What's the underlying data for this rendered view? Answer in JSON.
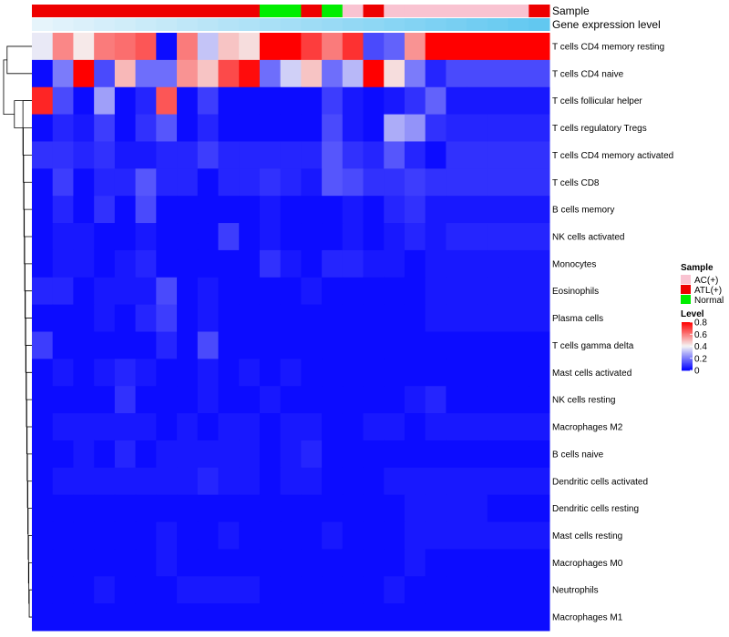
{
  "chart_data": {
    "type": "heatmap",
    "annotation_labels": {
      "sample": "Sample",
      "expression": "Gene expression level"
    },
    "samples": [
      "ATL(+)",
      "ATL(+)",
      "ATL(+)",
      "ATL(+)",
      "ATL(+)",
      "ATL(+)",
      "ATL(+)",
      "ATL(+)",
      "ATL(+)",
      "ATL(+)",
      "ATL(+)",
      "Normal",
      "Normal",
      "ATL(+)",
      "Normal",
      "AC(+)",
      "ATL(+)",
      "AC(+)",
      "AC(+)",
      "AC(+)",
      "AC(+)",
      "AC(+)",
      "AC(+)",
      "AC(+)",
      "ATL(+)"
    ],
    "expression_annotation": [
      0,
      0.04,
      0.08,
      0.12,
      0.16,
      0.2,
      0.24,
      0.28,
      0.32,
      0.36,
      0.4,
      0.44,
      0.48,
      0.52,
      0.56,
      0.6,
      0.64,
      0.68,
      0.72,
      0.76,
      0.8,
      0.84,
      0.88,
      0.92,
      0.96
    ],
    "rows": [
      "T cells CD4 memory resting",
      "T cells CD4 naive",
      "T cells follicular helper",
      "T cells regulatory  Tregs",
      "T cells CD4 memory activated",
      "T cells CD8",
      "B cells memory",
      "NK cells activated",
      "Monocytes",
      "Eosinophils",
      "Plasma cells",
      "T cells gamma delta",
      "Mast cells activated",
      "NK cells resting",
      "Macrophages M2",
      "B cells naive",
      "Dendritic cells activated",
      "Dendritic cells resting",
      "Mast cells resting",
      "Macrophages M0",
      "Neutrophils",
      "Macrophages M1"
    ],
    "values": [
      [
        0.38,
        0.58,
        0.42,
        0.6,
        0.62,
        0.66,
        0.02,
        0.6,
        0.32,
        0.48,
        0.44,
        0.8,
        0.8,
        0.7,
        0.6,
        0.72,
        0.12,
        0.16,
        0.56,
        0.8,
        0.8,
        0.8,
        0.8,
        0.8,
        0.8
      ],
      [
        0.02,
        0.2,
        0.8,
        0.12,
        0.5,
        0.18,
        0.18,
        0.56,
        0.48,
        0.68,
        0.78,
        0.18,
        0.34,
        0.48,
        0.18,
        0.3,
        0.8,
        0.44,
        0.2,
        0.06,
        0.12,
        0.12,
        0.12,
        0.12,
        0.12
      ],
      [
        0.74,
        0.12,
        0.02,
        0.26,
        0.02,
        0.06,
        0.66,
        0.02,
        0.1,
        0.02,
        0.02,
        0.02,
        0.02,
        0.02,
        0.1,
        0.04,
        0.02,
        0.04,
        0.08,
        0.16,
        0.04,
        0.04,
        0.04,
        0.04,
        0.04
      ],
      [
        0.02,
        0.06,
        0.04,
        0.1,
        0.02,
        0.08,
        0.14,
        0.02,
        0.06,
        0.02,
        0.02,
        0.02,
        0.02,
        0.02,
        0.12,
        0.04,
        0.02,
        0.28,
        0.24,
        0.08,
        0.06,
        0.06,
        0.06,
        0.06,
        0.06
      ],
      [
        0.08,
        0.08,
        0.06,
        0.08,
        0.04,
        0.04,
        0.06,
        0.06,
        0.1,
        0.06,
        0.06,
        0.06,
        0.06,
        0.06,
        0.14,
        0.08,
        0.06,
        0.14,
        0.06,
        0.02,
        0.08,
        0.08,
        0.08,
        0.08,
        0.08
      ],
      [
        0.02,
        0.1,
        0.02,
        0.06,
        0.06,
        0.14,
        0.06,
        0.06,
        0.02,
        0.06,
        0.06,
        0.08,
        0.06,
        0.04,
        0.14,
        0.12,
        0.08,
        0.08,
        0.1,
        0.08,
        0.08,
        0.08,
        0.08,
        0.08,
        0.08
      ],
      [
        0.02,
        0.06,
        0.02,
        0.08,
        0.02,
        0.12,
        0.02,
        0.02,
        0.02,
        0.02,
        0.02,
        0.04,
        0.02,
        0.02,
        0.02,
        0.04,
        0.02,
        0.06,
        0.08,
        0.04,
        0.04,
        0.04,
        0.04,
        0.04,
        0.04
      ],
      [
        0.02,
        0.04,
        0.04,
        0.02,
        0.02,
        0.04,
        0.02,
        0.02,
        0.02,
        0.1,
        0.02,
        0.04,
        0.02,
        0.02,
        0.02,
        0.04,
        0.02,
        0.04,
        0.06,
        0.04,
        0.06,
        0.06,
        0.06,
        0.06,
        0.06
      ],
      [
        0.02,
        0.04,
        0.04,
        0.02,
        0.04,
        0.06,
        0.02,
        0.02,
        0.02,
        0.02,
        0.02,
        0.08,
        0.04,
        0.02,
        0.06,
        0.06,
        0.04,
        0.04,
        0.02,
        0.04,
        0.04,
        0.04,
        0.04,
        0.04,
        0.04
      ],
      [
        0.06,
        0.06,
        0.02,
        0.04,
        0.04,
        0.04,
        0.12,
        0.02,
        0.04,
        0.02,
        0.02,
        0.02,
        0.02,
        0.04,
        0.02,
        0.02,
        0.02,
        0.02,
        0.02,
        0.04,
        0.04,
        0.04,
        0.04,
        0.04,
        0.04
      ],
      [
        0.02,
        0.02,
        0.02,
        0.04,
        0.02,
        0.06,
        0.1,
        0.02,
        0.04,
        0.02,
        0.02,
        0.02,
        0.02,
        0.02,
        0.02,
        0.02,
        0.02,
        0.02,
        0.02,
        0.04,
        0.04,
        0.04,
        0.04,
        0.04,
        0.04
      ],
      [
        0.1,
        0.02,
        0.02,
        0.02,
        0.02,
        0.02,
        0.06,
        0.02,
        0.12,
        0.02,
        0.02,
        0.02,
        0.02,
        0.02,
        0.02,
        0.02,
        0.02,
        0.02,
        0.02,
        0.02,
        0.02,
        0.02,
        0.02,
        0.02,
        0.02
      ],
      [
        0.02,
        0.04,
        0.02,
        0.04,
        0.06,
        0.04,
        0.02,
        0.02,
        0.04,
        0.02,
        0.04,
        0.02,
        0.04,
        0.02,
        0.02,
        0.02,
        0.02,
        0.02,
        0.02,
        0.02,
        0.02,
        0.02,
        0.02,
        0.02,
        0.02
      ],
      [
        0.02,
        0.02,
        0.02,
        0.02,
        0.08,
        0.02,
        0.02,
        0.02,
        0.04,
        0.02,
        0.02,
        0.04,
        0.02,
        0.02,
        0.02,
        0.02,
        0.02,
        0.02,
        0.04,
        0.06,
        0.02,
        0.02,
        0.02,
        0.02,
        0.02
      ],
      [
        0.02,
        0.04,
        0.04,
        0.04,
        0.04,
        0.04,
        0.02,
        0.04,
        0.02,
        0.04,
        0.04,
        0.02,
        0.04,
        0.04,
        0.02,
        0.02,
        0.04,
        0.04,
        0.02,
        0.04,
        0.04,
        0.04,
        0.04,
        0.04,
        0.04
      ],
      [
        0.02,
        0.02,
        0.04,
        0.02,
        0.06,
        0.02,
        0.04,
        0.04,
        0.04,
        0.04,
        0.04,
        0.02,
        0.04,
        0.06,
        0.02,
        0.02,
        0.02,
        0.02,
        0.02,
        0.02,
        0.02,
        0.02,
        0.02,
        0.02,
        0.02
      ],
      [
        0.02,
        0.04,
        0.04,
        0.04,
        0.04,
        0.04,
        0.04,
        0.04,
        0.06,
        0.04,
        0.04,
        0.02,
        0.04,
        0.04,
        0.02,
        0.02,
        0.02,
        0.04,
        0.04,
        0.04,
        0.04,
        0.04,
        0.04,
        0.04,
        0.04
      ],
      [
        0.02,
        0.02,
        0.02,
        0.02,
        0.02,
        0.02,
        0.02,
        0.02,
        0.02,
        0.02,
        0.02,
        0.02,
        0.02,
        0.02,
        0.02,
        0.02,
        0.02,
        0.02,
        0.04,
        0.04,
        0.04,
        0.04,
        0.02,
        0.02,
        0.02
      ],
      [
        0.02,
        0.02,
        0.02,
        0.02,
        0.02,
        0.02,
        0.04,
        0.02,
        0.02,
        0.04,
        0.02,
        0.02,
        0.02,
        0.02,
        0.04,
        0.02,
        0.02,
        0.02,
        0.04,
        0.04,
        0.04,
        0.04,
        0.04,
        0.04,
        0.04
      ],
      [
        0.02,
        0.02,
        0.02,
        0.02,
        0.02,
        0.02,
        0.04,
        0.02,
        0.02,
        0.02,
        0.02,
        0.02,
        0.02,
        0.02,
        0.02,
        0.02,
        0.02,
        0.02,
        0.04,
        0.02,
        0.02,
        0.02,
        0.02,
        0.02,
        0.02
      ],
      [
        0.02,
        0.02,
        0.02,
        0.04,
        0.02,
        0.02,
        0.02,
        0.04,
        0.04,
        0.04,
        0.04,
        0.02,
        0.02,
        0.02,
        0.02,
        0.02,
        0.02,
        0.04,
        0.02,
        0.02,
        0.02,
        0.02,
        0.02,
        0.02,
        0.02
      ],
      [
        0.02,
        0.02,
        0.02,
        0.02,
        0.02,
        0.02,
        0.02,
        0.02,
        0.02,
        0.02,
        0.02,
        0.02,
        0.02,
        0.02,
        0.02,
        0.02,
        0.02,
        0.02,
        0.02,
        0.02,
        0.02,
        0.02,
        0.02,
        0.02,
        0.02
      ]
    ],
    "legend": {
      "sample_title": "Sample",
      "sample_items": [
        {
          "label": "AC(+)",
          "color": "#F9C3D1"
        },
        {
          "label": "ATL(+)",
          "color": "#EE0000"
        },
        {
          "label": "Normal",
          "color": "#00EE00"
        }
      ],
      "level_title": "Level",
      "level_ticks": [
        0.8,
        0.6,
        0.4,
        0.2,
        0
      ],
      "level_tick_labels": [
        "0.8",
        "0.6",
        "0.4",
        "0.2",
        "0"
      ],
      "level_range": [
        0,
        0.8
      ]
    },
    "colors": {
      "low": "#0000FF",
      "mid": "#F5F5F5",
      "high": "#FF0000",
      "expr_low": "#E6F4FB",
      "expr_high": "#5CC6F0"
    }
  }
}
